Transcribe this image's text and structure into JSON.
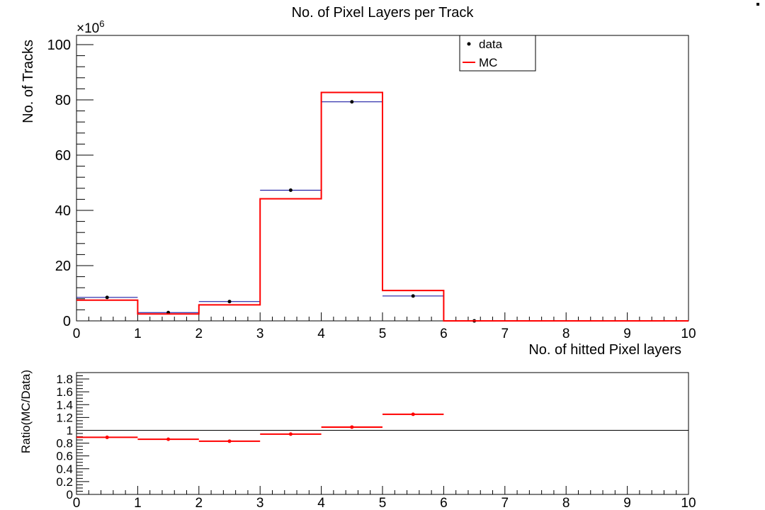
{
  "chart_data": [
    {
      "type": "histogram",
      "title": "No. of Pixel Layers per Track",
      "xlabel": "No. of hitted Pixel layers",
      "ylabel": "No. of Tracks",
      "y_multiplier_label": "×10",
      "y_multiplier_exponent": "6",
      "xlim": [
        0,
        10
      ],
      "ylim": [
        0,
        100
      ],
      "x_ticks": [
        "0",
        "1",
        "2",
        "3",
        "4",
        "5",
        "6",
        "7",
        "8",
        "9",
        "10"
      ],
      "y_ticks": [
        "0",
        "20",
        "40",
        "60",
        "80",
        "100"
      ],
      "bin_edges": [
        0,
        1,
        2,
        3,
        4,
        5,
        6,
        7,
        8,
        9,
        10
      ],
      "legend_position": "top-right",
      "series": [
        {
          "name": "data",
          "style": "points",
          "color": "#000000",
          "bar_color": "#000099",
          "values": [
            8.5,
            3.0,
            7.0,
            47.3,
            79.3,
            9.0,
            0,
            0,
            0,
            0
          ]
        },
        {
          "name": "MC",
          "style": "step",
          "color": "#ff0000",
          "values": [
            7.5,
            2.5,
            5.8,
            44.2,
            82.7,
            11.0,
            0,
            0,
            0,
            0
          ]
        }
      ]
    },
    {
      "type": "scatter",
      "ylabel": "Ratio(MC/Data)",
      "xlim": [
        0,
        10
      ],
      "ylim": [
        0,
        1.9
      ],
      "x_ticks": [
        "0",
        "1",
        "2",
        "3",
        "4",
        "5",
        "6",
        "7",
        "8",
        "9",
        "10"
      ],
      "y_ticks": [
        "0",
        "0.2",
        "0.4",
        "0.6",
        "0.8",
        "1",
        "1.2",
        "1.4",
        "1.6",
        "1.8"
      ],
      "reference_line": 1,
      "series": [
        {
          "color": "#ff0000",
          "x_low": [
            0,
            1,
            2,
            3,
            4,
            5
          ],
          "x_high": [
            1,
            2,
            3,
            4,
            5,
            6
          ],
          "x": [
            0.5,
            1.5,
            2.5,
            3.5,
            4.5,
            5.5
          ],
          "values": [
            0.89,
            0.86,
            0.83,
            0.94,
            1.05,
            1.25
          ]
        }
      ]
    }
  ]
}
